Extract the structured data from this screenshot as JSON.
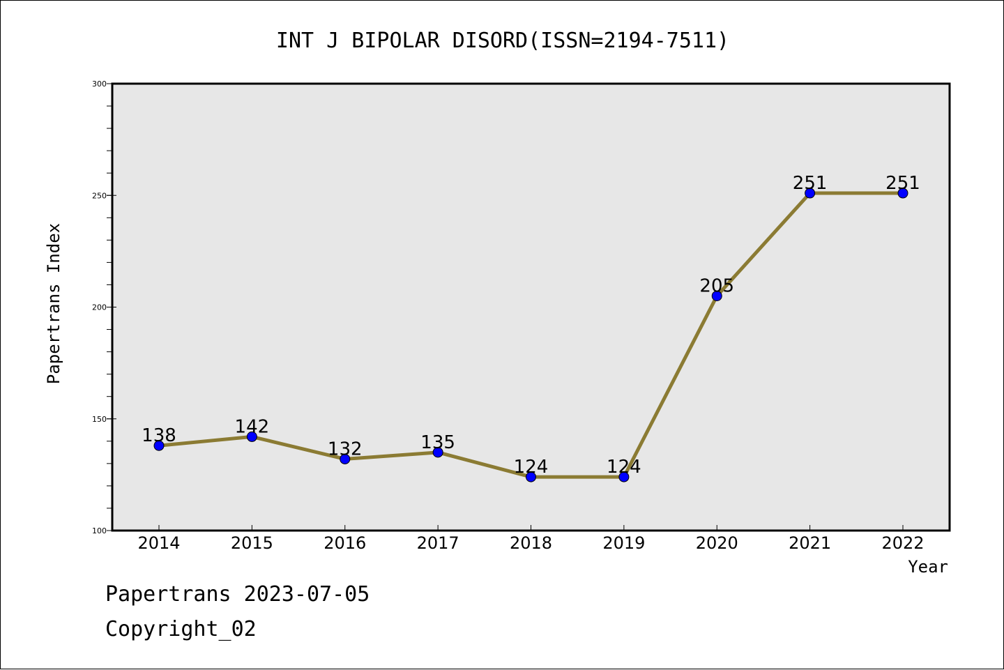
{
  "chart_data": {
    "type": "line",
    "title": "INT J BIPOLAR DISORD(ISSN=2194-7511)",
    "xlabel": "Year",
    "ylabel": "Papertrans Index",
    "categories": [
      "2014",
      "2015",
      "2016",
      "2017",
      "2018",
      "2019",
      "2020",
      "2021",
      "2022"
    ],
    "values": [
      138,
      142,
      132,
      135,
      124,
      124,
      205,
      251,
      251
    ],
    "ylim": [
      100,
      300
    ],
    "yticks": [
      100,
      150,
      200,
      250,
      300
    ],
    "grid": false,
    "legend": "none",
    "data_labels": true,
    "colors": {
      "line": "#8B7B33",
      "marker": "#0000FF",
      "plot_background": "#E7E7E7"
    }
  },
  "footer": {
    "line1": "Papertrans 2023-07-05",
    "line2": "Copyright_02"
  }
}
